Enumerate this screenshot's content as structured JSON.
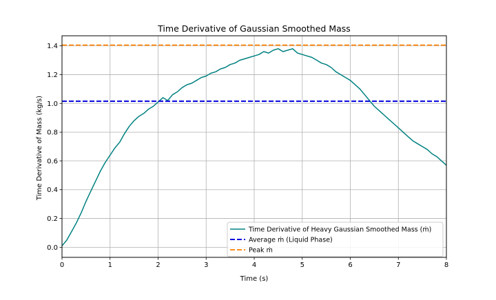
{
  "chart_data": {
    "type": "line",
    "title": "Time Derivative of Gaussian Smoothed Mass",
    "xlabel": "Time (s)",
    "ylabel": "Time Derivative of Mass (kg/s)",
    "xlim": [
      0,
      8
    ],
    "ylim": [
      -0.07,
      1.47
    ],
    "xticks": [
      0,
      1,
      2,
      3,
      4,
      5,
      6,
      7,
      8
    ],
    "xtick_labels": [
      "0",
      "1",
      "2",
      "3",
      "4",
      "5",
      "6",
      "7",
      "8"
    ],
    "yticks": [
      0.0,
      0.2,
      0.4,
      0.6,
      0.8,
      1.0,
      1.2,
      1.4
    ],
    "ytick_labels": [
      "0.0",
      "0.2",
      "0.4",
      "0.6",
      "0.8",
      "1.0",
      "1.2",
      "1.4"
    ],
    "grid": true,
    "legend_position": "bottom-right",
    "series": [
      {
        "name": "Time Derivative of Heavy Gaussian Smoothed Mass (ṁ)",
        "color": "#008080",
        "style": "solid",
        "x": [
          0.0,
          0.1,
          0.2,
          0.3,
          0.4,
          0.5,
          0.6,
          0.7,
          0.8,
          0.9,
          1.0,
          1.1,
          1.2,
          1.3,
          1.4,
          1.5,
          1.6,
          1.7,
          1.8,
          1.9,
          2.0,
          2.1,
          2.2,
          2.3,
          2.4,
          2.5,
          2.6,
          2.7,
          2.8,
          2.9,
          3.0,
          3.1,
          3.2,
          3.3,
          3.4,
          3.5,
          3.6,
          3.7,
          3.8,
          3.9,
          4.0,
          4.1,
          4.2,
          4.3,
          4.4,
          4.5,
          4.6,
          4.7,
          4.8,
          4.9,
          5.0,
          5.1,
          5.2,
          5.3,
          5.4,
          5.5,
          5.6,
          5.7,
          5.8,
          5.9,
          6.0,
          6.1,
          6.2,
          6.3,
          6.4,
          6.5,
          6.6,
          6.7,
          6.8,
          6.9,
          7.0,
          7.1,
          7.2,
          7.3,
          7.4,
          7.5,
          7.6,
          7.7,
          7.8,
          7.9,
          8.0
        ],
        "y": [
          0.01,
          0.05,
          0.11,
          0.17,
          0.24,
          0.32,
          0.39,
          0.46,
          0.53,
          0.59,
          0.64,
          0.69,
          0.73,
          0.79,
          0.84,
          0.88,
          0.91,
          0.93,
          0.96,
          0.98,
          1.01,
          1.04,
          1.02,
          1.06,
          1.08,
          1.11,
          1.13,
          1.14,
          1.16,
          1.18,
          1.19,
          1.21,
          1.22,
          1.24,
          1.25,
          1.27,
          1.28,
          1.3,
          1.31,
          1.32,
          1.33,
          1.34,
          1.36,
          1.35,
          1.37,
          1.38,
          1.36,
          1.37,
          1.38,
          1.35,
          1.34,
          1.33,
          1.32,
          1.3,
          1.28,
          1.27,
          1.25,
          1.22,
          1.2,
          1.18,
          1.16,
          1.13,
          1.1,
          1.06,
          1.02,
          0.98,
          0.95,
          0.92,
          0.89,
          0.86,
          0.83,
          0.8,
          0.77,
          0.74,
          0.72,
          0.7,
          0.68,
          0.65,
          0.63,
          0.6,
          0.57
        ]
      },
      {
        "name": "Average ṁ (Liquid Phase)",
        "color": "#0000dd",
        "style": "dashed",
        "value": 1.015
      },
      {
        "name": "Peak ṁ",
        "color": "#ff8c1a",
        "style": "dashed",
        "value": 1.405
      }
    ]
  }
}
